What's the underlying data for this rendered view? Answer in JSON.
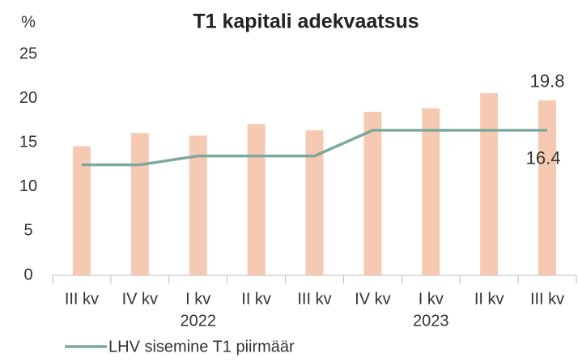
{
  "chart_data": {
    "type": "bar_line",
    "title": "T1 kapitali adekvaatsus",
    "y_unit": "%",
    "categories": [
      "III kv",
      "IV kv",
      "I kv",
      "II kv",
      "III kv",
      "IV kv",
      "I kv",
      "II kv",
      "III kv"
    ],
    "year_labels": [
      null,
      null,
      "2022",
      null,
      null,
      null,
      "2023",
      null,
      null
    ],
    "values": [
      14.6,
      16.1,
      15.8,
      17.1,
      16.4,
      18.5,
      18.9,
      20.6,
      19.8
    ],
    "color": "#f6cab2",
    "series": [
      {
        "name": "LHV sisemine T1 piirmäär",
        "color": "#7ea89e",
        "values": [
          12.5,
          12.5,
          13.5,
          13.5,
          13.5,
          16.4,
          16.4,
          16.4,
          16.4
        ]
      }
    ],
    "ylim": [
      0,
      25
    ],
    "yticks": [
      0,
      5,
      10,
      15,
      20,
      25
    ],
    "grid": false
  }
}
